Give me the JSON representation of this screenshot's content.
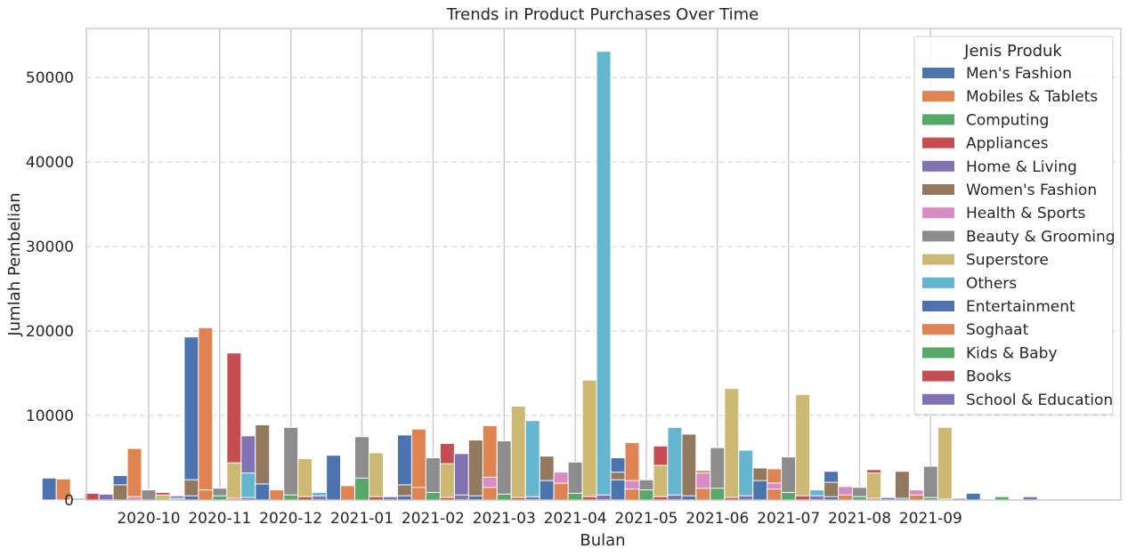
{
  "chart_data": {
    "type": "bar",
    "title": "Trends in Product Purchases Over Time",
    "xlabel": "Bulan",
    "ylabel": "Jumlah Pembelian",
    "ylim": [
      0,
      55800
    ],
    "yticks": [
      0,
      10000,
      20000,
      30000,
      40000,
      50000
    ],
    "categories": [
      "2020-10",
      "2020-11",
      "2020-12",
      "2021-01",
      "2021-02",
      "2021-03",
      "2021-04",
      "2021-05",
      "2021-06",
      "2021-07",
      "2021-08",
      "2021-09"
    ],
    "grid": "dashed horizontal and solid vertical",
    "legend": {
      "title": "Jenis Produk",
      "placement": "top-right"
    },
    "series": [
      {
        "name": "Men's Fashion",
        "color": "#4c72b0",
        "values": [
          2600,
          2900,
          19300,
          3900,
          2000,
          7700,
          5900,
          2400,
          5000,
          4000,
          1100,
          3400
        ]
      },
      {
        "name": "Mobiles & Tablets",
        "color": "#dd8452",
        "values": [
          2500,
          6100,
          20400,
          1200,
          1500,
          8400,
          8800,
          1300,
          6800,
          3500,
          3700,
          1200
        ]
      },
      {
        "name": "Computing",
        "color": "#55a868",
        "values": [
          200,
          1300,
          400,
          600,
          2400,
          1500,
          4300,
          1200,
          1300,
          900,
          700,
          500
        ]
      },
      {
        "name": "Appliances",
        "color": "#c44e52",
        "values": [
          800,
          900,
          17400,
          2200,
          1300,
          6700,
          5000,
          2900,
          6400,
          1700,
          1100,
          3600
        ]
      },
      {
        "name": "Home & Living",
        "color": "#8172b3",
        "values": [
          700,
          500,
          7600,
          1000,
          400,
          5500,
          800,
          600,
          2500,
          400,
          500,
          400
        ]
      },
      {
        "name": "Women's Fashion",
        "color": "#937860",
        "values": [
          1800,
          2400,
          8900,
          2900,
          1800,
          7100,
          5200,
          3300,
          7800,
          3800,
          2100,
          3400
        ]
      },
      {
        "name": "Health & Sports",
        "color": "#da8bc3",
        "values": [
          400,
          300,
          1300,
          500,
          1200,
          2700,
          3300,
          2300,
          3200,
          2000,
          1600,
          1200
        ]
      },
      {
        "name": "Beauty & Grooming",
        "color": "#8c8c8c",
        "values": [
          1200,
          1400,
          8600,
          7500,
          5000,
          7000,
          4500,
          2400,
          6200,
          5100,
          1500,
          4000
        ]
      },
      {
        "name": "Superstore",
        "color": "#ccb974",
        "values": [
          600,
          4400,
          4900,
          5600,
          4300,
          11100,
          14200,
          4100,
          13200,
          12500,
          3200,
          8600
        ]
      },
      {
        "name": "Others",
        "color": "#64b5cd",
        "values": [
          200,
          3200,
          900,
          400,
          300,
          9400,
          53100,
          8600,
          5900,
          1200,
          400,
          0
        ]
      },
      {
        "name": "Entertainment",
        "color": "#4c72b0",
        "values": [
          500,
          1900,
          5300,
          500,
          500,
          2300,
          2400,
          500,
          2300,
          400,
          200,
          800
        ]
      },
      {
        "name": "Soghaat",
        "color": "#dd8452",
        "values": [
          1200,
          1200,
          1700,
          1500,
          1500,
          2000,
          1300,
          1400,
          1300,
          600,
          600,
          100
        ]
      },
      {
        "name": "Kids & Baby",
        "color": "#55a868",
        "values": [
          500,
          600,
          2600,
          900,
          700,
          800,
          1200,
          1400,
          900,
          400,
          300,
          400
        ]
      },
      {
        "name": "Books",
        "color": "#c44e52",
        "values": [
          200,
          400,
          400,
          300,
          300,
          400,
          400,
          300,
          500,
          200,
          100,
          100
        ]
      },
      {
        "name": "School & Education",
        "color": "#8172b3",
        "values": [
          300,
          500,
          400,
          600,
          400,
          600,
          600,
          500,
          500,
          300,
          200,
          400
        ]
      }
    ]
  }
}
